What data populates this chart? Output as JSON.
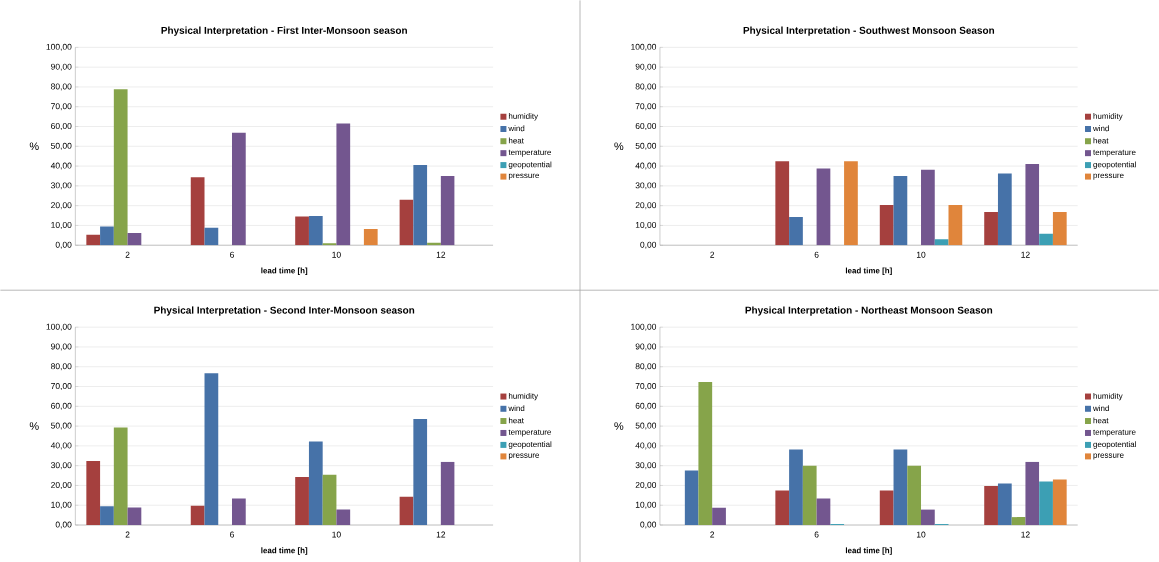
{
  "chart_data": [
    {
      "type": "bar",
      "title": "Physical Interpretation - First Inter-Monsoon season",
      "xlabel": "lead time [h]",
      "ylabel": "%",
      "categories": [
        "2",
        "6",
        "10",
        "12"
      ],
      "ylim": [
        0,
        100
      ],
      "yticks": [
        {
          "value": 0,
          "label": "0,00"
        },
        {
          "value": 10,
          "label": "10,00"
        },
        {
          "value": 20,
          "label": "20,00"
        },
        {
          "value": 30,
          "label": "30,00"
        },
        {
          "value": 40,
          "label": "40,00"
        },
        {
          "value": 50,
          "label": "50,00"
        },
        {
          "value": 60,
          "label": "60,00"
        },
        {
          "value": 70,
          "label": "70,00"
        },
        {
          "value": 80,
          "label": "80,00"
        },
        {
          "value": 90,
          "label": "90,00"
        },
        {
          "value": 100,
          "label": "100,00"
        }
      ],
      "grid": "y",
      "legend": "right",
      "series": [
        {
          "name": "humidity",
          "color": "#a5403e",
          "values": [
            5.3,
            34.3,
            14.5,
            23
          ]
        },
        {
          "name": "wind",
          "color": "#4672a8",
          "values": [
            9.5,
            8.8,
            14.8,
            40.5
          ]
        },
        {
          "name": "heat",
          "color": "#86a44a",
          "values": [
            78.8,
            0,
            1,
            1.3
          ]
        },
        {
          "name": "temperature",
          "color": "#73568f",
          "values": [
            6.2,
            56.8,
            61.5,
            35
          ]
        },
        {
          "name": "geopotential",
          "color": "#3c9fb4",
          "values": [
            0,
            0,
            0,
            0
          ]
        },
        {
          "name": "pressure",
          "color": "#e0853b",
          "values": [
            0,
            0,
            8.2,
            0
          ]
        }
      ]
    },
    {
      "type": "bar",
      "title": "Physical Interpretation - Southwest Monsoon Season",
      "xlabel": "lead time [h]",
      "ylabel": "%",
      "categories": [
        "2",
        "6",
        "10",
        "12"
      ],
      "ylim": [
        0,
        100
      ],
      "yticks": [
        {
          "value": 0,
          "label": "0,00"
        },
        {
          "value": 10,
          "label": "10,00"
        },
        {
          "value": 20,
          "label": "20,00"
        },
        {
          "value": 30,
          "label": "30,00"
        },
        {
          "value": 40,
          "label": "40,00"
        },
        {
          "value": 50,
          "label": "50,00"
        },
        {
          "value": 60,
          "label": "60,00"
        },
        {
          "value": 70,
          "label": "70,00"
        },
        {
          "value": 80,
          "label": "80,00"
        },
        {
          "value": 90,
          "label": "90,00"
        },
        {
          "value": 100,
          "label": "100,00"
        }
      ],
      "grid": "y",
      "legend": "right",
      "series": [
        {
          "name": "humidity",
          "color": "#a5403e",
          "values": [
            0,
            42.5,
            20.3,
            16.8
          ]
        },
        {
          "name": "wind",
          "color": "#4672a8",
          "values": [
            0,
            14.3,
            35,
            36.3
          ]
        },
        {
          "name": "heat",
          "color": "#86a44a",
          "values": [
            0,
            0,
            0,
            0
          ]
        },
        {
          "name": "temperature",
          "color": "#73568f",
          "values": [
            0,
            38.8,
            38.1,
            41
          ]
        },
        {
          "name": "geopotential",
          "color": "#3c9fb4",
          "values": [
            0,
            0,
            3,
            5.8
          ]
        },
        {
          "name": "pressure",
          "color": "#e0853b",
          "values": [
            0,
            42.5,
            20.3,
            16.8
          ]
        }
      ]
    },
    {
      "type": "bar",
      "title": "Physical Interpretation - Second Inter-Monsoon season",
      "xlabel": "lead time [h]",
      "ylabel": "%",
      "categories": [
        "2",
        "6",
        "10",
        "12"
      ],
      "ylim": [
        0,
        100
      ],
      "yticks": [
        {
          "value": 0,
          "label": "0,00"
        },
        {
          "value": 10,
          "label": "10,00"
        },
        {
          "value": 20,
          "label": "20,00"
        },
        {
          "value": 30,
          "label": "30,00"
        },
        {
          "value": 40,
          "label": "40,00"
        },
        {
          "value": 50,
          "label": "50,00"
        },
        {
          "value": 60,
          "label": "60,00"
        },
        {
          "value": 70,
          "label": "70,00"
        },
        {
          "value": 80,
          "label": "80,00"
        },
        {
          "value": 90,
          "label": "90,00"
        },
        {
          "value": 100,
          "label": "100,00"
        }
      ],
      "grid": "y",
      "legend": "right",
      "series": [
        {
          "name": "humidity",
          "color": "#a5403e",
          "values": [
            32.3,
            9.8,
            24.3,
            14.3
          ]
        },
        {
          "name": "wind",
          "color": "#4672a8",
          "values": [
            9.5,
            76.7,
            42.2,
            53.6
          ]
        },
        {
          "name": "heat",
          "color": "#86a44a",
          "values": [
            49.3,
            0,
            25.4,
            0
          ]
        },
        {
          "name": "temperature",
          "color": "#73568f",
          "values": [
            8.8,
            13.4,
            7.8,
            32
          ]
        },
        {
          "name": "geopotential",
          "color": "#3c9fb4",
          "values": [
            0,
            0,
            0,
            0
          ]
        },
        {
          "name": "pressure",
          "color": "#e0853b",
          "values": [
            0,
            0,
            0,
            0
          ]
        }
      ]
    },
    {
      "type": "bar",
      "title": "Physical Interpretation - Northeast Monsoon Season",
      "xlabel": "lead time [h]",
      "ylabel": "%",
      "categories": [
        "2",
        "6",
        "10",
        "12"
      ],
      "ylim": [
        0,
        100
      ],
      "yticks": [
        {
          "value": 0,
          "label": "0,00"
        },
        {
          "value": 10,
          "label": "10,00"
        },
        {
          "value": 20,
          "label": "20,00"
        },
        {
          "value": 30,
          "label": "30,00"
        },
        {
          "value": 40,
          "label": "40,00"
        },
        {
          "value": 50,
          "label": "50,00"
        },
        {
          "value": 60,
          "label": "60,00"
        },
        {
          "value": 70,
          "label": "70,00"
        },
        {
          "value": 80,
          "label": "80,00"
        },
        {
          "value": 90,
          "label": "90,00"
        },
        {
          "value": 100,
          "label": "100,00"
        }
      ],
      "grid": "y",
      "legend": "right",
      "series": [
        {
          "name": "humidity",
          "color": "#a5403e",
          "values": [
            0,
            17.5,
            17.5,
            19.7
          ]
        },
        {
          "name": "wind",
          "color": "#4672a8",
          "values": [
            27.5,
            38.2,
            38.2,
            21
          ]
        },
        {
          "name": "heat",
          "color": "#86a44a",
          "values": [
            72.3,
            30,
            30,
            4
          ]
        },
        {
          "name": "temperature",
          "color": "#73568f",
          "values": [
            8.7,
            13.4,
            7.8,
            32
          ]
        },
        {
          "name": "geopotential",
          "color": "#3c9fb4",
          "values": [
            0,
            0.5,
            0.5,
            22
          ]
        },
        {
          "name": "pressure",
          "color": "#e0853b",
          "values": [
            0,
            0,
            0,
            23
          ]
        }
      ]
    }
  ]
}
